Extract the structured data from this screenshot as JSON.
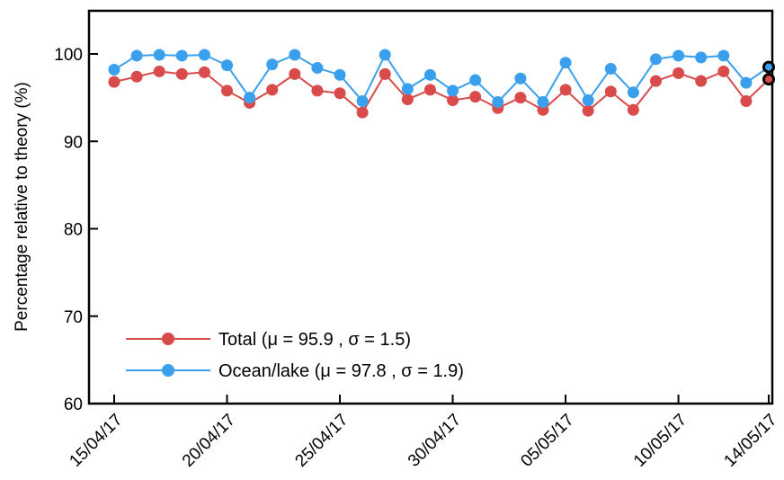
{
  "chart_data": {
    "type": "line",
    "ylabel": "Percentage relative to theory (%)",
    "ylim": [
      60,
      105
    ],
    "yticks": [
      60,
      70,
      80,
      90,
      100
    ],
    "x_start_date": "2017-04-15",
    "x_ticks": [
      {
        "day": 0,
        "label": "15/04/17"
      },
      {
        "day": 5,
        "label": "20/04/17"
      },
      {
        "day": 10,
        "label": "25/04/17"
      },
      {
        "day": 15,
        "label": "30/04/17"
      },
      {
        "day": 20,
        "label": "05/05/17"
      },
      {
        "day": 25,
        "label": "10/05/17"
      },
      {
        "day": 29,
        "label": "14/05/17"
      }
    ],
    "grid": false,
    "legend_position": "bottom-left",
    "series": [
      {
        "name": "Total (μ = 95.9 , σ = 1.5)",
        "color": "#d94a4a",
        "values": [
          96.8,
          97.4,
          98.0,
          97.7,
          97.9,
          95.8,
          94.4,
          95.9,
          97.7,
          95.8,
          95.5,
          93.3,
          97.7,
          94.8,
          95.9,
          94.7,
          95.1,
          93.8,
          95.0,
          93.6,
          95.9,
          93.5,
          95.7,
          93.6,
          96.9,
          97.8,
          96.9,
          98.0,
          94.6,
          97.1
        ]
      },
      {
        "name": "Ocean/lake (μ = 97.8 , σ = 1.9)",
        "color": "#3aa0ee",
        "values": [
          98.2,
          99.8,
          99.9,
          99.8,
          99.9,
          98.7,
          95.0,
          98.8,
          99.9,
          98.4,
          97.6,
          94.6,
          99.9,
          96.0,
          97.6,
          95.8,
          97.0,
          94.5,
          97.2,
          94.5,
          99.0,
          94.7,
          98.3,
          95.6,
          99.4,
          99.8,
          99.6,
          99.8,
          96.7,
          98.5
        ]
      }
    ],
    "highlight_last_point": true
  }
}
